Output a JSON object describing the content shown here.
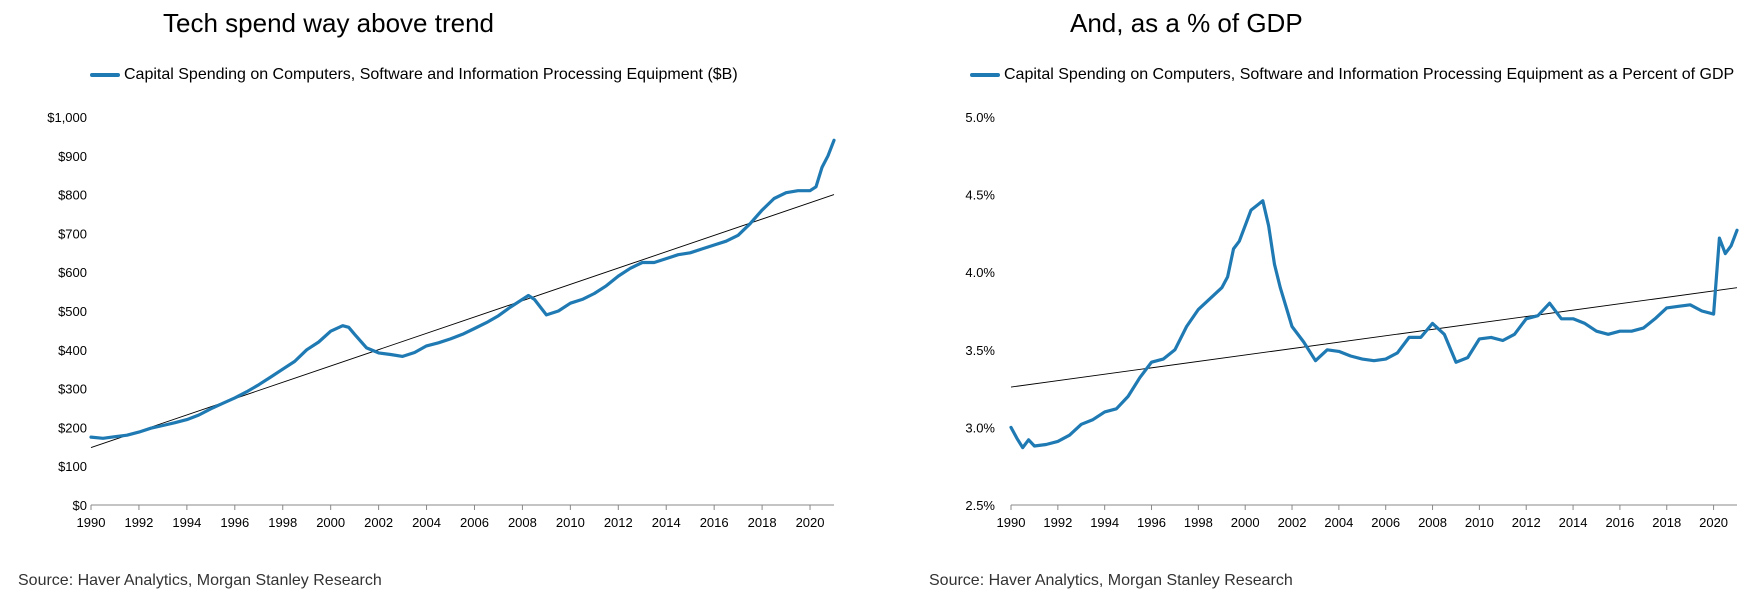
{
  "chart_data": [
    {
      "type": "line",
      "title": "Tech spend way above trend",
      "xlabel": "",
      "ylabel": "",
      "xlim": [
        1990,
        2021
      ],
      "ylim": [
        0,
        1000
      ],
      "x_ticks": [
        "1990",
        "1992",
        "1994",
        "1996",
        "1998",
        "2000",
        "2002",
        "2004",
        "2006",
        "2008",
        "2010",
        "2012",
        "2014",
        "2016",
        "2018",
        "2020"
      ],
      "y_ticks": [
        "$0",
        "$100",
        "$200",
        "$300",
        "$400",
        "$500",
        "$600",
        "$700",
        "$800",
        "$900",
        "$1,000"
      ],
      "y_tick_values": [
        0,
        100,
        200,
        300,
        400,
        500,
        600,
        700,
        800,
        900,
        1000
      ],
      "grid": false,
      "legend_position": "top",
      "series": [
        {
          "name": "Capital Spending on Computers, Software and Information Processing Equipment ($B)",
          "color": "#1f7ab3",
          "x": [
            1990,
            1990.5,
            1991,
            1991.5,
            1992,
            1992.5,
            1993,
            1993.5,
            1994,
            1994.5,
            1995,
            1995.5,
            1996,
            1996.5,
            1997,
            1997.5,
            1998,
            1998.5,
            1999,
            1999.5,
            2000,
            2000.5,
            2000.75,
            2001,
            2001.5,
            2002,
            2002.5,
            2003,
            2003.5,
            2004,
            2004.5,
            2005,
            2005.5,
            2006,
            2006.5,
            2007,
            2007.5,
            2008,
            2008.25,
            2008.5,
            2009,
            2009.5,
            2010,
            2010.5,
            2011,
            2011.5,
            2012,
            2012.5,
            2013,
            2013.5,
            2014,
            2014.5,
            2015,
            2015.5,
            2016,
            2016.5,
            2017,
            2017.5,
            2018,
            2018.5,
            2019,
            2019.5,
            2020,
            2020.25,
            2020.5,
            2020.75,
            2021
          ],
          "y": [
            175,
            172,
            176,
            180,
            188,
            198,
            205,
            212,
            220,
            232,
            248,
            262,
            276,
            292,
            310,
            330,
            350,
            370,
            400,
            420,
            448,
            462,
            458,
            440,
            405,
            392,
            388,
            383,
            393,
            410,
            418,
            428,
            440,
            455,
            470,
            488,
            510,
            530,
            540,
            530,
            490,
            500,
            520,
            530,
            545,
            565,
            590,
            610,
            625,
            625,
            635,
            645,
            650,
            660,
            670,
            680,
            695,
            725,
            760,
            790,
            805,
            810,
            810,
            820,
            870,
            900,
            940
          ]
        }
      ],
      "trend_line": {
        "x": [
          1990,
          2021
        ],
        "y": [
          148,
          800
        ]
      },
      "source": "Source: Haver Analytics, Morgan Stanley Research"
    },
    {
      "type": "line",
      "title": "And, as a % of GDP",
      "xlabel": "",
      "ylabel": "",
      "xlim": [
        1990,
        2021
      ],
      "ylim": [
        2.5,
        5.0
      ],
      "x_ticks": [
        "1990",
        "1992",
        "1994",
        "1996",
        "1998",
        "2000",
        "2002",
        "2004",
        "2006",
        "2008",
        "2010",
        "2012",
        "2014",
        "2016",
        "2018",
        "2020"
      ],
      "y_ticks": [
        "2.5%",
        "3.0%",
        "3.5%",
        "4.0%",
        "4.5%",
        "5.0%"
      ],
      "y_tick_values": [
        2.5,
        3.0,
        3.5,
        4.0,
        4.5,
        5.0
      ],
      "grid": false,
      "legend_position": "top",
      "series": [
        {
          "name": "Capital Spending on Computers, Software and Information Processing Equipment as a Percent of GDP",
          "color": "#1f7ab3",
          "x": [
            1990,
            1990.25,
            1990.5,
            1990.75,
            1991,
            1991.5,
            1992,
            1992.5,
            1993,
            1993.5,
            1994,
            1994.5,
            1995,
            1995.5,
            1996,
            1996.5,
            1997,
            1997.5,
            1998,
            1998.5,
            1999,
            1999.25,
            1999.5,
            1999.75,
            2000,
            2000.25,
            2000.5,
            2000.75,
            2001,
            2001.25,
            2001.5,
            2002,
            2002.5,
            2003,
            2003.5,
            2004,
            2004.5,
            2005,
            2005.5,
            2006,
            2006.5,
            2007,
            2007.5,
            2008,
            2008.5,
            2009,
            2009.5,
            2010,
            2010.5,
            2011,
            2011.5,
            2012,
            2012.5,
            2013,
            2013.5,
            2014,
            2014.5,
            2015,
            2015.5,
            2016,
            2016.5,
            2017,
            2017.5,
            2018,
            2018.5,
            2019,
            2019.5,
            2020,
            2020.25,
            2020.5,
            2020.75,
            2021
          ],
          "y": [
            3.0,
            2.93,
            2.87,
            2.92,
            2.88,
            2.89,
            2.91,
            2.95,
            3.02,
            3.05,
            3.1,
            3.12,
            3.2,
            3.32,
            3.42,
            3.44,
            3.5,
            3.65,
            3.76,
            3.83,
            3.9,
            3.97,
            4.15,
            4.2,
            4.3,
            4.4,
            4.43,
            4.46,
            4.3,
            4.05,
            3.9,
            3.65,
            3.55,
            3.43,
            3.5,
            3.49,
            3.46,
            3.44,
            3.43,
            3.44,
            3.48,
            3.58,
            3.58,
            3.67,
            3.6,
            3.42,
            3.45,
            3.57,
            3.58,
            3.56,
            3.6,
            3.7,
            3.72,
            3.8,
            3.7,
            3.7,
            3.67,
            3.62,
            3.6,
            3.62,
            3.62,
            3.64,
            3.7,
            3.77,
            3.78,
            3.79,
            3.75,
            3.73,
            4.22,
            4.12,
            4.17,
            4.27
          ]
        }
      ],
      "trend_line": {
        "x": [
          1990,
          2021
        ],
        "y": [
          3.26,
          3.9
        ]
      },
      "source": "Source: Haver Analytics, Morgan Stanley Research"
    }
  ]
}
